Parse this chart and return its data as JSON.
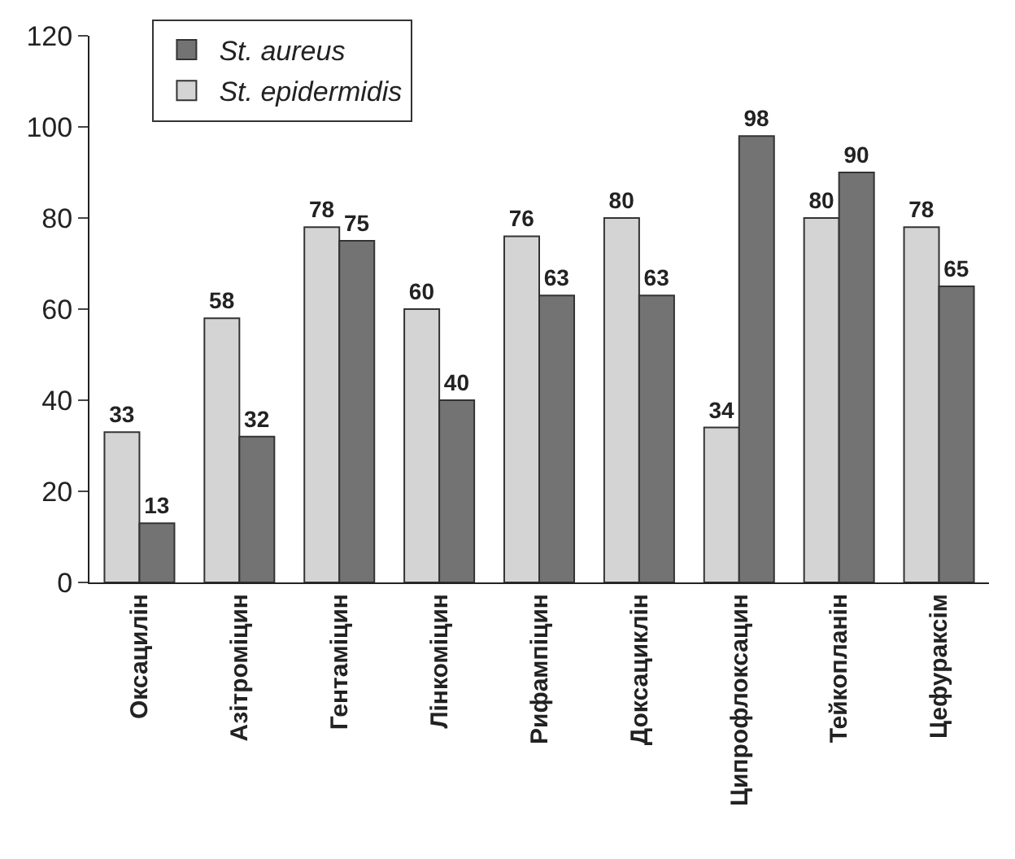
{
  "chart_data": {
    "type": "bar",
    "categories": [
      "Оксацилін",
      "Азітроміцин",
      "Гентаміцин",
      "Лінкоміцин",
      "Рифампіцин",
      "Доксациклін",
      "Ципрофлоксацин",
      "Тейкопланін",
      "Цефураксім"
    ],
    "series": [
      {
        "name": "St. epidermidis",
        "color": "#d4d4d4",
        "values": [
          33,
          58,
          78,
          60,
          76,
          80,
          34,
          80,
          78
        ]
      },
      {
        "name": "St. aureus",
        "color": "#737373",
        "values": [
          13,
          32,
          75,
          40,
          63,
          63,
          98,
          90,
          65
        ]
      }
    ],
    "ylim": [
      0,
      120
    ],
    "yticks": [
      0,
      20,
      40,
      60,
      80,
      100,
      120
    ],
    "data_labels": true,
    "legend": "top left"
  }
}
